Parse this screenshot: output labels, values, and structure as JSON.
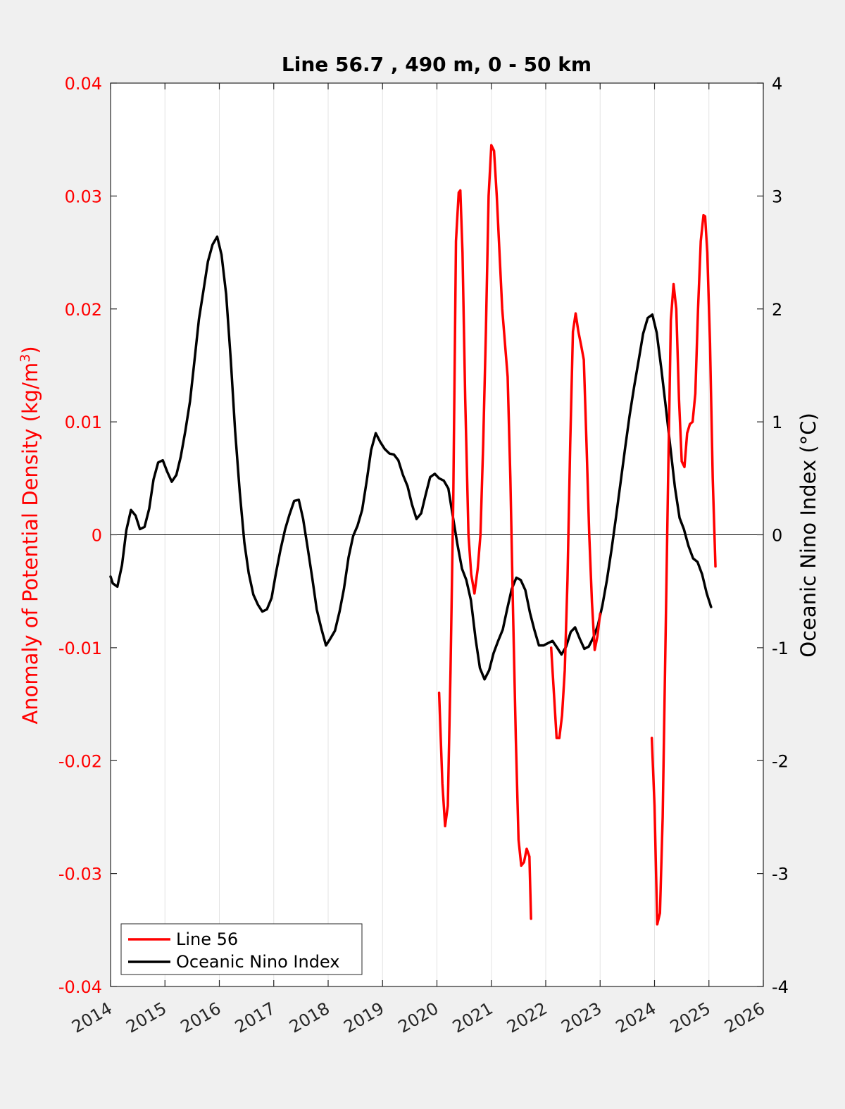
{
  "chart_data": {
    "type": "line",
    "title": "Line 56.7 , 490 m, 0 - 50 km",
    "xlabel": "",
    "ylabel_left": "Anomaly of Potential Density (kg/m",
    "ylabel_left_sup": "3",
    "ylabel_left_close": ")",
    "ylabel_right": "Oceanic Nino Index (°C)",
    "xlim": [
      2014,
      2026
    ],
    "ylim_left": [
      -0.04,
      0.04
    ],
    "ylim_right": [
      -4,
      4
    ],
    "x_ticks": [
      2014,
      2015,
      2016,
      2017,
      2018,
      2019,
      2020,
      2021,
      2022,
      2023,
      2024,
      2025,
      2026
    ],
    "x_tick_labels": [
      "2014",
      "2015",
      "2016",
      "2017",
      "2018",
      "2019",
      "2020",
      "2021",
      "2022",
      "2023",
      "2024",
      "2025",
      "2026"
    ],
    "y_left_ticks": [
      0.04,
      0.03,
      0.02,
      0.01,
      0,
      -0.01,
      -0.02,
      -0.03,
      -0.04
    ],
    "y_left_tick_labels": [
      "0.04",
      "0.03",
      "0.02",
      "0.01",
      "0",
      "-0.01",
      "-0.02",
      "-0.03",
      "-0.04"
    ],
    "y_right_ticks": [
      4,
      3,
      2,
      1,
      0,
      -1,
      -2,
      -3,
      -4
    ],
    "y_right_tick_labels": [
      "4",
      "3",
      "2",
      "1",
      "0",
      "-1",
      "-2",
      "-3",
      "-4"
    ],
    "grid": "vertical",
    "legend_position": "bottom-left",
    "colors": {
      "line56": "#ff0000",
      "oni": "#000000",
      "left_axis": "#ff0000",
      "right_axis": "#000000",
      "background": "#f0f0f0",
      "plot_bg": "#ffffff"
    },
    "series": [
      {
        "name": "Line 56",
        "axis": "left",
        "segments": [
          [
            [
              2020.04,
              -0.014
            ],
            [
              2020.1,
              -0.022
            ],
            [
              2020.15,
              -0.0258
            ],
            [
              2020.2,
              -0.024
            ],
            [
              2020.25,
              -0.012
            ],
            [
              2020.3,
              0.003
            ],
            [
              2020.35,
              0.026
            ],
            [
              2020.4,
              0.0303
            ],
            [
              2020.43,
              0.0305
            ],
            [
              2020.47,
              0.025
            ],
            [
              2020.52,
              0.012
            ],
            [
              2020.58,
              0.0
            ],
            [
              2020.63,
              -0.0035
            ],
            [
              2020.69,
              -0.0052
            ],
            [
              2020.75,
              -0.003
            ],
            [
              2020.8,
              0.0
            ],
            [
              2020.85,
              0.008
            ],
            [
              2020.9,
              0.018
            ],
            [
              2020.95,
              0.03
            ],
            [
              2021.0,
              0.0345
            ],
            [
              2021.05,
              0.034
            ],
            [
              2021.1,
              0.03
            ],
            [
              2021.15,
              0.025
            ],
            [
              2021.2,
              0.02
            ],
            [
              2021.25,
              0.017
            ],
            [
              2021.3,
              0.014
            ],
            [
              2021.35,
              0.005
            ],
            [
              2021.4,
              -0.007
            ],
            [
              2021.45,
              -0.018
            ],
            [
              2021.5,
              -0.027
            ],
            [
              2021.55,
              -0.0293
            ],
            [
              2021.6,
              -0.029
            ],
            [
              2021.65,
              -0.0278
            ],
            [
              2021.7,
              -0.0285
            ],
            [
              2021.73,
              -0.034
            ]
          ],
          [
            [
              2022.1,
              -0.01
            ],
            [
              2022.15,
              -0.014
            ],
            [
              2022.2,
              -0.018
            ],
            [
              2022.25,
              -0.018
            ],
            [
              2022.3,
              -0.016
            ],
            [
              2022.35,
              -0.012
            ],
            [
              2022.4,
              -0.004
            ],
            [
              2022.45,
              0.008
            ],
            [
              2022.5,
              0.018
            ],
            [
              2022.55,
              0.0196
            ],
            [
              2022.6,
              0.018
            ],
            [
              2022.65,
              0.0168
            ],
            [
              2022.7,
              0.0155
            ],
            [
              2022.75,
              0.008
            ],
            [
              2022.8,
              0.0
            ],
            [
              2022.85,
              -0.006
            ],
            [
              2022.9,
              -0.0102
            ],
            [
              2022.95,
              -0.009
            ],
            [
              2023.0,
              -0.007
            ]
          ],
          [
            [
              2023.95,
              -0.018
            ],
            [
              2024.0,
              -0.024
            ],
            [
              2024.05,
              -0.0345
            ],
            [
              2024.1,
              -0.0335
            ],
            [
              2024.15,
              -0.025
            ],
            [
              2024.2,
              -0.01
            ],
            [
              2024.25,
              0.005
            ],
            [
              2024.3,
              0.019
            ],
            [
              2024.35,
              0.0222
            ],
            [
              2024.4,
              0.02
            ],
            [
              2024.45,
              0.012
            ],
            [
              2024.5,
              0.0065
            ],
            [
              2024.55,
              0.006
            ],
            [
              2024.6,
              0.009
            ],
            [
              2024.65,
              0.0098
            ],
            [
              2024.7,
              0.01
            ],
            [
              2024.75,
              0.0125
            ],
            [
              2024.8,
              0.02
            ],
            [
              2024.85,
              0.026
            ],
            [
              2024.9,
              0.0283
            ],
            [
              2024.93,
              0.0282
            ],
            [
              2024.97,
              0.025
            ],
            [
              2025.02,
              0.017
            ],
            [
              2025.07,
              0.005
            ],
            [
              2025.12,
              -0.0028
            ]
          ]
        ]
      },
      {
        "name": "Oceanic Nino Index",
        "axis": "right",
        "segments": [
          [
            [
              2014.0,
              -0.37
            ],
            [
              2014.04,
              -0.43
            ],
            [
              2014.125,
              -0.46
            ],
            [
              2014.21,
              -0.27
            ],
            [
              2014.29,
              0.04
            ],
            [
              2014.375,
              0.22
            ],
            [
              2014.46,
              0.17
            ],
            [
              2014.54,
              0.05
            ],
            [
              2014.625,
              0.07
            ],
            [
              2014.71,
              0.23
            ],
            [
              2014.79,
              0.49
            ],
            [
              2014.875,
              0.64
            ],
            [
              2014.96,
              0.66
            ],
            [
              2015.04,
              0.56
            ],
            [
              2015.125,
              0.47
            ],
            [
              2015.21,
              0.53
            ],
            [
              2015.29,
              0.69
            ],
            [
              2015.375,
              0.92
            ],
            [
              2015.46,
              1.18
            ],
            [
              2015.54,
              1.53
            ],
            [
              2015.625,
              1.91
            ],
            [
              2015.71,
              2.17
            ],
            [
              2015.79,
              2.42
            ],
            [
              2015.875,
              2.57
            ],
            [
              2015.96,
              2.64
            ],
            [
              2016.04,
              2.48
            ],
            [
              2016.125,
              2.13
            ],
            [
              2016.21,
              1.55
            ],
            [
              2016.29,
              0.92
            ],
            [
              2016.375,
              0.38
            ],
            [
              2016.46,
              -0.07
            ],
            [
              2016.54,
              -0.34
            ],
            [
              2016.625,
              -0.53
            ],
            [
              2016.71,
              -0.62
            ],
            [
              2016.79,
              -0.68
            ],
            [
              2016.875,
              -0.66
            ],
            [
              2016.96,
              -0.56
            ],
            [
              2017.04,
              -0.34
            ],
            [
              2017.125,
              -0.13
            ],
            [
              2017.21,
              0.05
            ],
            [
              2017.29,
              0.18
            ],
            [
              2017.375,
              0.3
            ],
            [
              2017.46,
              0.31
            ],
            [
              2017.54,
              0.14
            ],
            [
              2017.625,
              -0.12
            ],
            [
              2017.71,
              -0.39
            ],
            [
              2017.79,
              -0.66
            ],
            [
              2017.875,
              -0.83
            ],
            [
              2017.96,
              -0.98
            ],
            [
              2018.04,
              -0.92
            ],
            [
              2018.125,
              -0.85
            ],
            [
              2018.21,
              -0.68
            ],
            [
              2018.29,
              -0.48
            ],
            [
              2018.375,
              -0.2
            ],
            [
              2018.46,
              -0.01
            ],
            [
              2018.54,
              0.08
            ],
            [
              2018.625,
              0.22
            ],
            [
              2018.71,
              0.48
            ],
            [
              2018.79,
              0.75
            ],
            [
              2018.875,
              0.9
            ],
            [
              2018.96,
              0.82
            ],
            [
              2019.04,
              0.76
            ],
            [
              2019.125,
              0.72
            ],
            [
              2019.21,
              0.71
            ],
            [
              2019.29,
              0.66
            ],
            [
              2019.375,
              0.53
            ],
            [
              2019.46,
              0.43
            ],
            [
              2019.54,
              0.27
            ],
            [
              2019.625,
              0.14
            ],
            [
              2019.71,
              0.19
            ],
            [
              2019.79,
              0.35
            ],
            [
              2019.875,
              0.51
            ],
            [
              2019.96,
              0.54
            ],
            [
              2020.04,
              0.5
            ],
            [
              2020.125,
              0.48
            ],
            [
              2020.21,
              0.41
            ],
            [
              2020.29,
              0.17
            ],
            [
              2020.375,
              -0.08
            ],
            [
              2020.46,
              -0.3
            ],
            [
              2020.54,
              -0.4
            ],
            [
              2020.625,
              -0.58
            ],
            [
              2020.71,
              -0.92
            ],
            [
              2020.79,
              -1.18
            ],
            [
              2020.875,
              -1.28
            ],
            [
              2020.96,
              -1.2
            ],
            [
              2021.04,
              -1.05
            ],
            [
              2021.125,
              -0.94
            ],
            [
              2021.21,
              -0.84
            ],
            [
              2021.29,
              -0.66
            ],
            [
              2021.375,
              -0.48
            ],
            [
              2021.46,
              -0.38
            ],
            [
              2021.54,
              -0.4
            ],
            [
              2021.625,
              -0.49
            ],
            [
              2021.71,
              -0.69
            ],
            [
              2021.79,
              -0.84
            ],
            [
              2021.875,
              -0.98
            ],
            [
              2021.96,
              -0.98
            ],
            [
              2022.04,
              -0.96
            ],
            [
              2022.125,
              -0.94
            ],
            [
              2022.21,
              -1.0
            ],
            [
              2022.29,
              -1.06
            ],
            [
              2022.375,
              -0.99
            ],
            [
              2022.46,
              -0.86
            ],
            [
              2022.54,
              -0.82
            ],
            [
              2022.625,
              -0.92
            ],
            [
              2022.71,
              -1.01
            ],
            [
              2022.79,
              -0.99
            ],
            [
              2022.875,
              -0.91
            ],
            [
              2022.96,
              -0.8
            ],
            [
              2023.04,
              -0.63
            ],
            [
              2023.125,
              -0.4
            ],
            [
              2023.21,
              -0.13
            ],
            [
              2023.29,
              0.15
            ],
            [
              2023.375,
              0.46
            ],
            [
              2023.46,
              0.77
            ],
            [
              2023.54,
              1.05
            ],
            [
              2023.625,
              1.31
            ],
            [
              2023.71,
              1.55
            ],
            [
              2023.79,
              1.78
            ],
            [
              2023.875,
              1.92
            ],
            [
              2023.96,
              1.95
            ],
            [
              2024.04,
              1.79
            ],
            [
              2024.125,
              1.47
            ],
            [
              2024.21,
              1.12
            ],
            [
              2024.29,
              0.78
            ],
            [
              2024.375,
              0.42
            ],
            [
              2024.46,
              0.15
            ],
            [
              2024.54,
              0.05
            ],
            [
              2024.625,
              -0.1
            ],
            [
              2024.71,
              -0.21
            ],
            [
              2024.79,
              -0.24
            ],
            [
              2024.875,
              -0.35
            ],
            [
              2024.96,
              -0.52
            ],
            [
              2025.04,
              -0.64
            ]
          ]
        ]
      }
    ]
  }
}
